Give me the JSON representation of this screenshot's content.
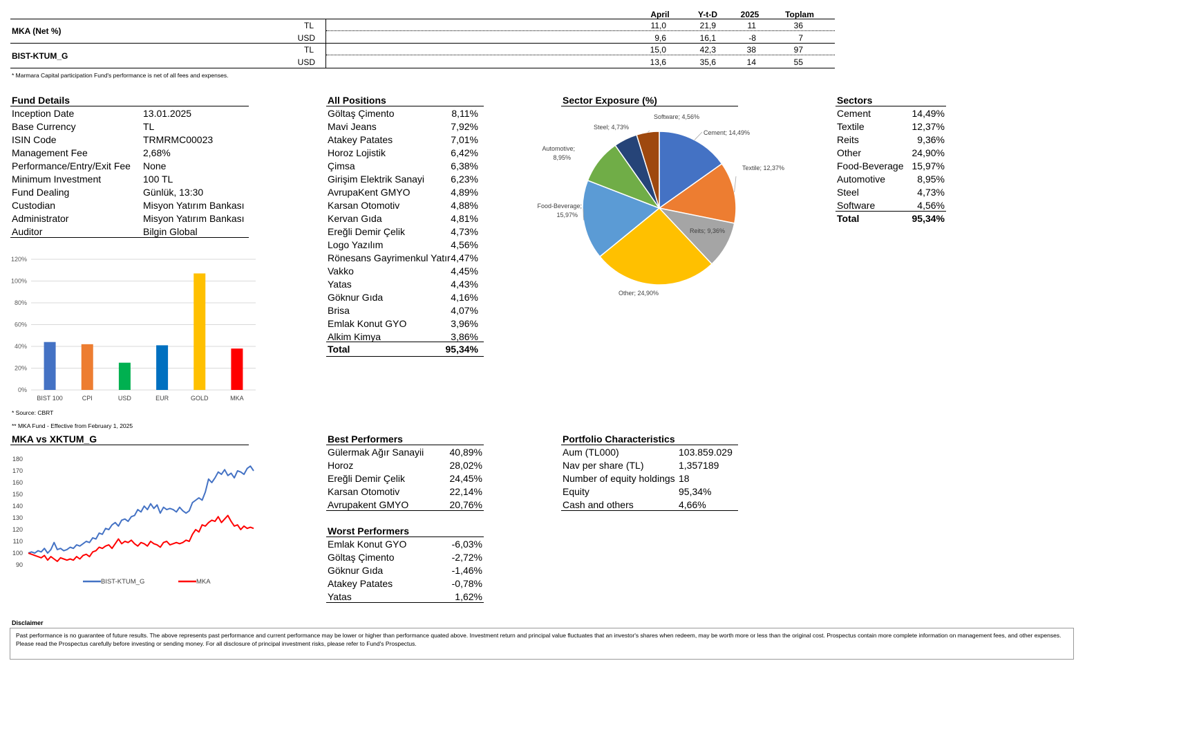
{
  "performance": {
    "headers": [
      "April",
      "Y-t-D",
      "2025",
      "Toplam"
    ],
    "rows": [
      {
        "name": "MKA (Net %)",
        "currency": "TL",
        "values": [
          "11,0",
          "21,9",
          "11",
          "36"
        ]
      },
      {
        "name": "",
        "currency": "USD",
        "values": [
          "9,6",
          "16,1",
          "-8",
          "7"
        ]
      },
      {
        "name": "BIST-KTUM_G",
        "currency": "TL",
        "values": [
          "15,0",
          "42,3",
          "38",
          "97"
        ]
      },
      {
        "name": "",
        "currency": "USD",
        "values": [
          "13,6",
          "35,6",
          "14",
          "55"
        ]
      }
    ],
    "footnote": "* Marmara Capital participation Fund's performance is net of all fees and expenses."
  },
  "fund_details": {
    "title": "Fund Details",
    "items": [
      {
        "label": "Inception Date",
        "value": "13.01.2025"
      },
      {
        "label": "Base Currency",
        "value": "TL"
      },
      {
        "label": "ISIN Code",
        "value": "TRMRMC00023"
      },
      {
        "label": "Management Fee",
        "value": "2,68%"
      },
      {
        "label": "Performance/Entry/Exit Fee",
        "value": "None"
      },
      {
        "label": "Minimum Investment",
        "value": "100 TL"
      },
      {
        "label": "Fund Dealing",
        "value": "Günlük, 13:30"
      },
      {
        "label": "Custodian",
        "value": "Misyon Yatırım Bankası"
      },
      {
        "label": "Administrator",
        "value": "Misyon Yatırım Bankası"
      },
      {
        "label": "Auditor",
        "value": "Bilgin Global"
      }
    ]
  },
  "all_positions": {
    "title": "All Positions",
    "items": [
      {
        "label": "Göltaş Çimento",
        "value": "8,11%"
      },
      {
        "label": "Mavi Jeans",
        "value": "7,92%"
      },
      {
        "label": "Atakey Patates",
        "value": "7,01%"
      },
      {
        "label": "Horoz Lojistik",
        "value": "6,42%"
      },
      {
        "label": "Çimsa",
        "value": "6,38%"
      },
      {
        "label": "Girişim Elektrik Sanayi",
        "value": "6,23%"
      },
      {
        "label": "AvrupaKent GMYO",
        "value": "4,89%"
      },
      {
        "label": "Karsan Otomotiv",
        "value": "4,88%"
      },
      {
        "label": "Kervan Gıda",
        "value": "4,81%"
      },
      {
        "label": "Ereğli Demir Çelik",
        "value": "4,73%"
      },
      {
        "label": "Logo Yazılım",
        "value": "4,56%"
      },
      {
        "label": "Rönesans Gayrimenkul Yatır",
        "value": "4,47%"
      },
      {
        "label": "Vakko",
        "value": "4,45%"
      },
      {
        "label": "Yatas",
        "value": "4,43%"
      },
      {
        "label": "Göknur Gıda",
        "value": "4,16%"
      },
      {
        "label": "Brisa",
        "value": "4,07%"
      },
      {
        "label": "Emlak Konut GYO",
        "value": "3,96%"
      },
      {
        "label": "Alkim Kimya",
        "value": "3,86%"
      }
    ],
    "total_label": "Total",
    "total_value": "95,34%"
  },
  "sectors": {
    "title": "Sectors",
    "items": [
      {
        "label": "Cement",
        "value": "14,49%"
      },
      {
        "label": "Textile",
        "value": "12,37%"
      },
      {
        "label": "Reits",
        "value": "9,36%"
      },
      {
        "label": "Other",
        "value": "24,90%"
      },
      {
        "label": "Food-Beverage",
        "value": "15,97%"
      },
      {
        "label": "Automotive",
        "value": "8,95%"
      },
      {
        "label": "Steel",
        "value": "4,73%"
      },
      {
        "label": "Software",
        "value": "4,56%"
      }
    ],
    "total_label": "Total",
    "total_value": "95,34%"
  },
  "sector_exposure_title": "Sector Exposure (%)",
  "best_performers": {
    "title": "Best Performers",
    "items": [
      {
        "label": "Gülermak Ağır Sanayii",
        "value": "40,89%"
      },
      {
        "label": "Horoz",
        "value": "28,02%"
      },
      {
        "label": "Ereğli Demir Çelik",
        "value": "24,45%"
      },
      {
        "label": "Karsan Otomotiv",
        "value": "22,14%"
      },
      {
        "label": "Avrupakent GMYO",
        "value": "20,76%"
      }
    ]
  },
  "worst_performers": {
    "title": "Worst Performers",
    "items": [
      {
        "label": "Emlak Konut GYO",
        "value": "-6,03%"
      },
      {
        "label": "Göltaş Çimento",
        "value": "-2,72%"
      },
      {
        "label": "Göknur Gıda",
        "value": "-1,46%"
      },
      {
        "label": "Atakey Patates",
        "value": "-0,78%"
      },
      {
        "label": "Yatas",
        "value": "1,62%"
      }
    ]
  },
  "portfolio_characteristics": {
    "title": "Portfolio Characteristics",
    "items": [
      {
        "label": "Aum (TL000)",
        "value": "103.859.029"
      },
      {
        "label": "Nav per share (TL)",
        "value": "1,357189"
      },
      {
        "label": "Number of equity holdings",
        "value": "18"
      },
      {
        "label": "Equity",
        "value": "95,34%"
      },
      {
        "label": "Cash and others",
        "value": "4,66%"
      }
    ]
  },
  "notes": {
    "source": "* Source: CBRT",
    "effective": "** MKA Fund - Effective from February 1, 2025"
  },
  "line_chart_title": "MKA vs XKTUM_G",
  "disclaimer": {
    "title": "Disclaimer",
    "text": "Past performance is no guarantee of future results. The above represents past performance and current performance may be lower or higher than performance quated above. Investment return and principal value fluctuates that an investor's shares when redeem, may be worth more or less than the original cost. Prospectus contain  more complete information on management fees, and other expenses. Please read the Prospectus carefully before investing or sending money. For all disclosure of principal investment risks, please refer to Fund's Prospectus."
  },
  "chart_data": [
    {
      "type": "bar",
      "categories": [
        "BIST 100",
        "CPI",
        "USD",
        "EUR",
        "GOLD",
        "MKA"
      ],
      "values": [
        44,
        42,
        25,
        41,
        107,
        38
      ],
      "colors": [
        "#4472C4",
        "#ED7D31",
        "#00B050",
        "#0070C0",
        "#FFC000",
        "#FF0000"
      ],
      "y_ticks": [
        "0%",
        "20%",
        "40%",
        "60%",
        "80%",
        "100%",
        "120%"
      ],
      "ylim": [
        0,
        120
      ],
      "grid": true
    },
    {
      "type": "pie",
      "title": "Sector Exposure (%)",
      "slices": [
        {
          "label": "Cement; 14,49%",
          "value": 14.49,
          "color": "#4472C4"
        },
        {
          "label": "Textile; 12,37%",
          "value": 12.37,
          "color": "#ED7D31"
        },
        {
          "label": "Reits; 9,36%",
          "value": 9.36,
          "color": "#A5A5A5"
        },
        {
          "label": "Other; 24,90%",
          "value": 24.9,
          "color": "#FFC000"
        },
        {
          "label": "Food-Beverage; 15,97%",
          "value": 15.97,
          "color": "#5B9BD5"
        },
        {
          "label": "Automotive; 8,95%",
          "value": 8.95,
          "color": "#70AD47"
        },
        {
          "label": "Steel; 4,73%",
          "value": 4.73,
          "color": "#264478"
        },
        {
          "label": "Software; 4,56%",
          "value": 4.56,
          "color": "#9E480E"
        }
      ]
    },
    {
      "type": "line",
      "title": "MKA vs XKTUM_G",
      "y_ticks": [
        "90",
        "100",
        "110",
        "120",
        "130",
        "140",
        "150",
        "160",
        "170",
        "180"
      ],
      "ylim": [
        90,
        180
      ],
      "series": [
        {
          "name": "BIST-KTUM_G",
          "color": "#4472C4",
          "values": [
            100,
            101,
            100,
            102,
            101,
            104,
            100,
            103,
            109,
            103,
            104,
            102,
            103,
            105,
            104,
            107,
            106,
            108,
            110,
            109,
            113,
            112,
            117,
            116,
            121,
            120,
            124,
            126,
            123,
            128,
            129,
            127,
            131,
            132,
            137,
            135,
            140,
            137,
            142,
            138,
            141,
            134,
            139,
            137,
            138,
            137,
            135,
            139,
            136,
            134,
            136,
            143,
            145,
            147,
            145,
            152,
            163,
            160,
            164,
            169,
            167,
            171,
            166,
            168,
            164,
            170,
            169,
            167,
            172,
            174,
            170
          ]
        },
        {
          "name": "MKA",
          "color": "#FF0000",
          "values": [
            100,
            99,
            98,
            97,
            96,
            98,
            94,
            97,
            95,
            93,
            96,
            95,
            94,
            95,
            94,
            97,
            95,
            98,
            99,
            97,
            101,
            102,
            105,
            104,
            106,
            107,
            104,
            108,
            112,
            108,
            110,
            109,
            111,
            108,
            106,
            109,
            108,
            106,
            110,
            108,
            107,
            105,
            109,
            110,
            107,
            108,
            109,
            108,
            109,
            111,
            110,
            116,
            120,
            118,
            124,
            123,
            126,
            128,
            127,
            131,
            126,
            129,
            132,
            127,
            123,
            124,
            120,
            123,
            121,
            122,
            121
          ]
        }
      ]
    }
  ]
}
